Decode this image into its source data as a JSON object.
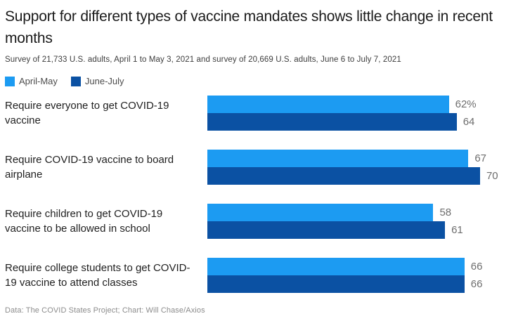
{
  "header": {
    "title": "Support for different types of vaccine mandates shows little change in recent months",
    "subtitle": "Survey of 21,733 U.S. adults, April 1 to May 3, 2021 and survey of 20,669 U.S. adults, June 6 to July 7, 2021"
  },
  "legend": {
    "items": [
      {
        "label": "April-May",
        "color": "#1c9bf2"
      },
      {
        "label": "June-July",
        "color": "#0b51a3"
      }
    ]
  },
  "chart_data": {
    "type": "bar",
    "orientation": "horizontal",
    "title": "Support for different types of vaccine mandates shows little change in recent months",
    "categories": [
      "Require everyone to get COVID-19 vaccine",
      "Require COVID-19 vaccine to board airplane",
      "Require children to get COVID-19 vaccine to be allowed in school",
      "Require college students to get COVID-19 vaccine to attend classes"
    ],
    "series": [
      {
        "name": "April-May",
        "color": "#1c9bf2",
        "values": [
          62,
          67,
          58,
          66
        ]
      },
      {
        "name": "June-July",
        "color": "#0b51a3",
        "values": [
          64,
          70,
          61,
          66
        ]
      }
    ],
    "value_labels": [
      [
        "62%",
        "64"
      ],
      [
        "67",
        "70"
      ],
      [
        "58",
        "61"
      ],
      [
        "66",
        "66"
      ]
    ],
    "xlim": [
      0,
      76.5
    ],
    "grid": false,
    "legend_position": "top-left"
  },
  "footer": {
    "credit": "Data: The COVID States Project; Chart: Will Chase/Axios"
  }
}
